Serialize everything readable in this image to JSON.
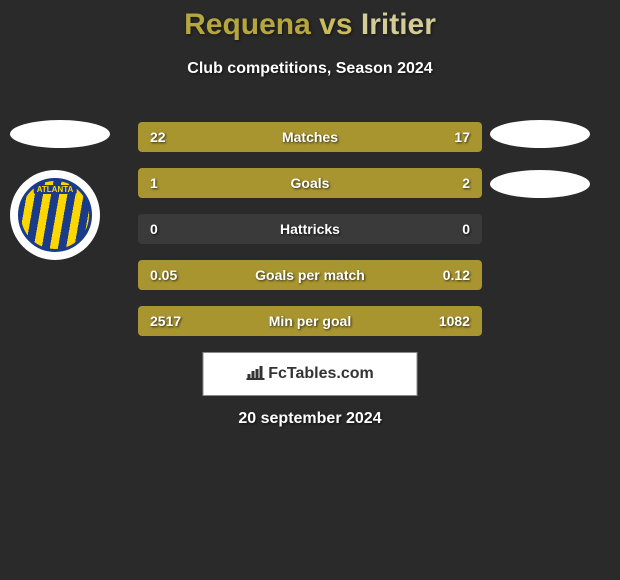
{
  "header": {
    "player1": "Requena",
    "vs": "vs",
    "player2": "Iritier",
    "subtitle": "Club competitions, Season 2024"
  },
  "left_badge": {
    "club_name": "ATLANTA"
  },
  "stats": [
    {
      "label": "Matches",
      "left_value": "22",
      "right_value": "17",
      "left_color": "#a89530",
      "right_color": "#a89530",
      "left_width_pct": 56,
      "right_width_pct": 44,
      "track_color": "#3a3a3a"
    },
    {
      "label": "Goals",
      "left_value": "1",
      "right_value": "2",
      "left_color": "#a89530",
      "right_color": "#a89530",
      "left_width_pct": 33,
      "right_width_pct": 67,
      "track_color": "#3a3a3a"
    },
    {
      "label": "Hattricks",
      "left_value": "0",
      "right_value": "0",
      "left_color": "#a89530",
      "right_color": "#a89530",
      "left_width_pct": 0,
      "right_width_pct": 0,
      "track_color": "#3a3a3a"
    },
    {
      "label": "Goals per match",
      "left_value": "0.05",
      "right_value": "0.12",
      "left_color": "#a89530",
      "right_color": "#a89530",
      "left_width_pct": 29,
      "right_width_pct": 71,
      "track_color": "#3a3a3a"
    },
    {
      "label": "Min per goal",
      "left_value": "2517",
      "right_value": "1082",
      "left_color": "#a89530",
      "right_color": "#a89530",
      "left_width_pct": 70,
      "right_width_pct": 30,
      "track_color": "#3a3a3a"
    }
  ],
  "brand": {
    "label": "FcTables.com"
  },
  "footer": {
    "date": "20 september 2024"
  },
  "colors": {
    "background": "#2a2a2a",
    "stat_bar": "#a89530",
    "text": "#ffffff"
  }
}
